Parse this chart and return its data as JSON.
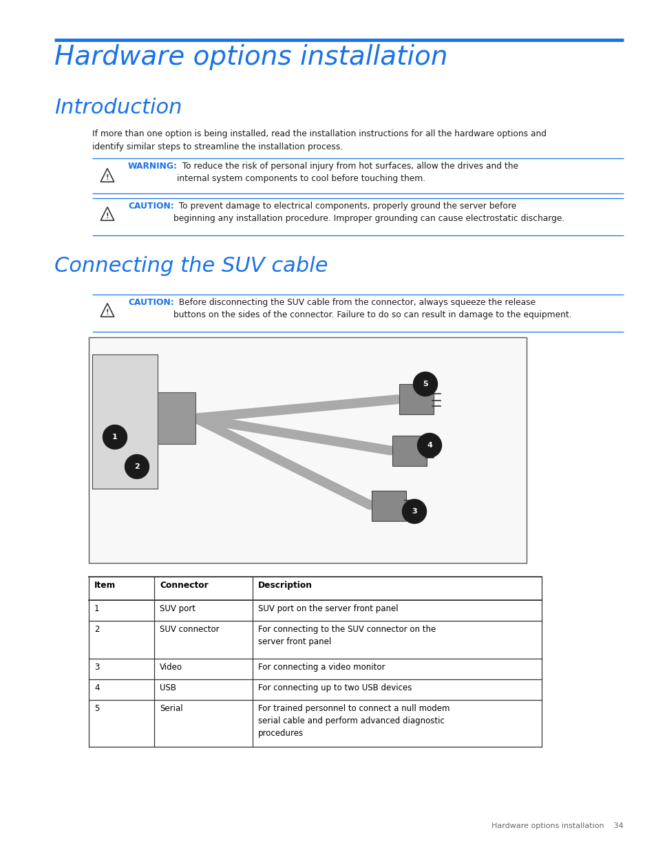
{
  "bg_color": "#ffffff",
  "page_title": "Hardware options installation",
  "title_color": "#1a72e8",
  "title_line_color": "#1a72e8",
  "section1_title": "Introduction",
  "section1_body": "If more than one option is being installed, read the installation instructions for all the hardware options and\nidentify similar steps to streamline the installation process.",
  "warning_label": "WARNING:",
  "warning_text": "   To reduce the risk of personal injury from hot surfaces, allow the drives and the\ninternal system components to cool before touching them.",
  "caution1_label": "CAUTION:",
  "caution1_text": "   To prevent damage to electrical components, properly ground the server before\nbeginning any installation procedure. Improper grounding can cause electrostatic discharge.",
  "section2_title": "Connecting the SUV cable",
  "caution2_label": "CAUTION:",
  "caution2_text": "   Before disconnecting the SUV cable from the connector, always squeeze the release\nbuttons on the sides of the connector. Failure to do so can result in damage to the equipment.",
  "alert_color": "#1a72e8",
  "body_color": "#1a1a1a",
  "line_color": "#1a72e8",
  "table_headers": [
    "Item",
    "Connector",
    "Description"
  ],
  "table_rows": [
    [
      "1",
      "SUV port",
      "SUV port on the server front panel"
    ],
    [
      "2",
      "SUV connector",
      "For connecting to the SUV connector on the\nserver front panel"
    ],
    [
      "3",
      "Video",
      "For connecting a video monitor"
    ],
    [
      "4",
      "USB",
      "For connecting up to two USB devices"
    ],
    [
      "5",
      "Serial",
      "For trained personnel to connect a null modem\nserial cable and perform advanced diagnostic\nprocedures"
    ]
  ],
  "footer_text": "Hardware options installation    34"
}
